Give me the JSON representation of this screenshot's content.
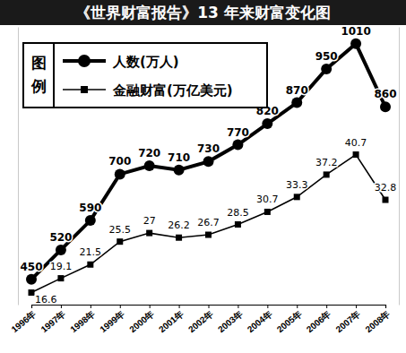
{
  "chart_data": {
    "type": "line",
    "title": "《世界财富报告》13 年来财富变化图",
    "legend_title": "图例",
    "categories": [
      "1996年",
      "1997年",
      "1998年",
      "1999年",
      "2000年",
      "2001年",
      "2002年",
      "2003年",
      "2004年",
      "2005年",
      "2006年",
      "2007年",
      "2008年"
    ],
    "series": [
      {
        "name": "人数(万人)",
        "color": "#000000",
        "marker": "circle",
        "line_style": "solid",
        "axis": "y",
        "values": [
          450,
          520,
          590,
          700,
          720,
          710,
          730,
          770,
          820,
          870,
          950,
          1010,
          860
        ]
      },
      {
        "name": "金融财富(万亿美元)",
        "color": "#000000",
        "marker": "square",
        "line_style": "solid",
        "axis": "y2",
        "values": [
          16.6,
          19.1,
          21.5,
          25.5,
          27,
          26.2,
          26.7,
          28.5,
          30.7,
          33.3,
          37.2,
          40.7,
          32.8
        ]
      }
    ],
    "ylim": [
      390,
      1050
    ],
    "y2lim": [
      14.5,
      63
    ],
    "tick_labels": "x",
    "data_labels": true,
    "legend": "upper left",
    "grid": false
  }
}
